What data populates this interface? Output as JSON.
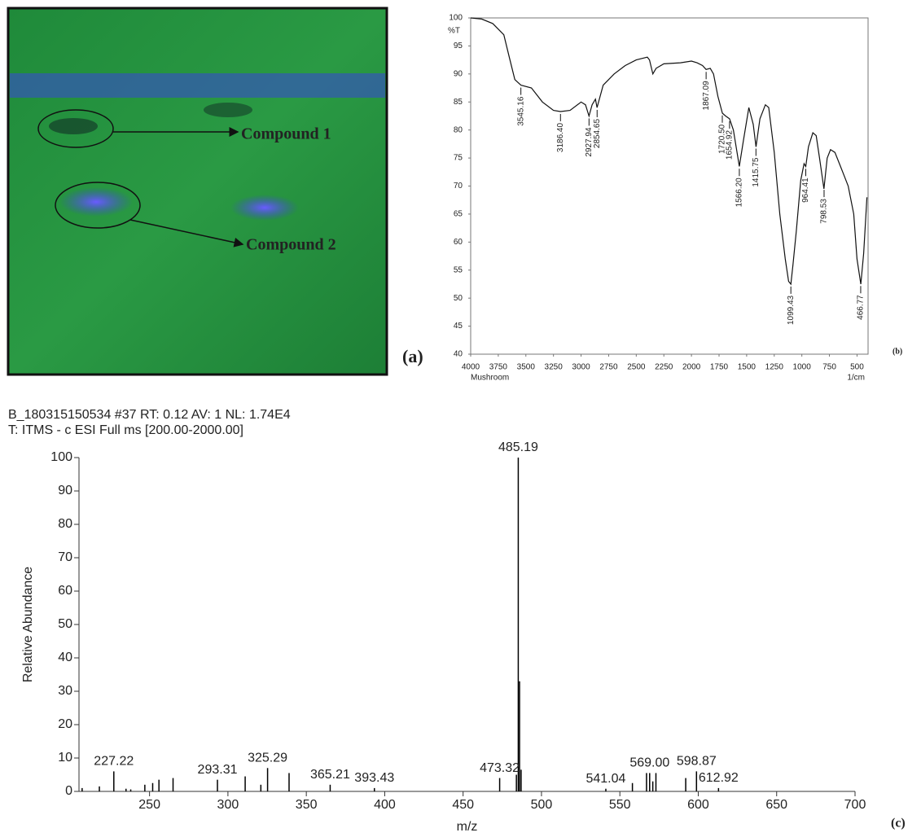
{
  "photo": {
    "labels": [
      "Compound 1",
      "Compound 2"
    ],
    "panel_label": "(a)"
  },
  "chart_data": [
    {
      "type": "line",
      "panel_label": "(b)",
      "y_label": "%T",
      "x_label": "1/cm",
      "subtitle": "Mushroom",
      "color": "#111111",
      "xlim": [
        4000,
        400
      ],
      "ylim": [
        40,
        100
      ],
      "xticks": [
        4000,
        3750,
        3500,
        3250,
        3000,
        2750,
        2500,
        2250,
        2000,
        1750,
        1500,
        1250,
        1000,
        750,
        500
      ],
      "yticks": [
        40,
        45,
        50,
        55,
        60,
        65,
        70,
        75,
        80,
        85,
        90,
        95,
        100
      ],
      "x": [
        4000,
        3900,
        3800,
        3700,
        3650,
        3600,
        3545,
        3450,
        3350,
        3250,
        3186,
        3100,
        3000,
        2960,
        2928,
        2900,
        2870,
        2855,
        2800,
        2700,
        2600,
        2500,
        2400,
        2380,
        2350,
        2320,
        2250,
        2100,
        2000,
        1950,
        1900,
        1867,
        1830,
        1800,
        1760,
        1720,
        1690,
        1655,
        1620,
        1566,
        1530,
        1480,
        1440,
        1415,
        1380,
        1330,
        1300,
        1250,
        1200,
        1150,
        1120,
        1099,
        1080,
        1050,
        1010,
        980,
        964,
        940,
        900,
        870,
        840,
        800,
        770,
        740,
        700,
        660,
        620,
        580,
        530,
        500,
        466,
        440,
        410
      ],
      "values": [
        100,
        99.8,
        99,
        97,
        93,
        89,
        88,
        87.5,
        85,
        83.5,
        83.3,
        83.5,
        85,
        84.5,
        82.5,
        84.5,
        85.5,
        84,
        88,
        90,
        91.5,
        92.5,
        93,
        92.5,
        90,
        91,
        91.8,
        92,
        92.3,
        92,
        91.5,
        90.8,
        91,
        90,
        86,
        83,
        82.5,
        82,
        80,
        73.5,
        78,
        84,
        81,
        77,
        82,
        84.5,
        84,
        76,
        65,
        57,
        53,
        52.5,
        56,
        62,
        71,
        74,
        73.5,
        77,
        79.5,
        79,
        75,
        69.5,
        75,
        76.5,
        76,
        74,
        72,
        70,
        65,
        57,
        52.5,
        58,
        68
      ],
      "peak_labels": [
        3545.16,
        {
          "value": 3186.4,
          "label": "3186.40"
        },
        2927.94,
        2854.65,
        1867.09,
        {
          "value": 1720.5,
          "label": "1720.50"
        },
        1654.92,
        {
          "value": 1566.2,
          "label": "1566.20"
        },
        1415.75,
        1099.43,
        964.41,
        798.53,
        466.77
      ]
    },
    {
      "type": "stem",
      "panel_label": "(c)",
      "title": "B_180315150534 #37  RT: 0.12  AV: 1  NL: 1.74E4",
      "subtitle": "T: ITMS - c ESI Full ms [200.00-2000.00]",
      "y_label": "Relative Abundance",
      "x_label": "m/z",
      "color": "#000000",
      "xlim": [
        205,
        700
      ],
      "ylim": [
        0,
        100
      ],
      "xticks": [
        250,
        300,
        350,
        400,
        450,
        500,
        550,
        600,
        650,
        700
      ],
      "yticks": [
        0,
        10,
        20,
        30,
        40,
        50,
        60,
        70,
        80,
        90,
        100
      ],
      "x": [
        207,
        218,
        227.22,
        235,
        238,
        247,
        252,
        256,
        265,
        293.31,
        311,
        321,
        325.29,
        339,
        365.21,
        393.43,
        473.32,
        484,
        485.19,
        486,
        487,
        541.04,
        558,
        567,
        569,
        571,
        573,
        592,
        598.87,
        612.92
      ],
      "values": [
        1,
        1.5,
        6,
        0.8,
        0.6,
        2,
        2.5,
        3.5,
        4,
        3.5,
        4.5,
        2,
        7,
        5.5,
        2,
        1,
        4,
        5,
        100,
        33,
        6.5,
        0.8,
        2.5,
        5.5,
        5.5,
        3,
        5.5,
        4,
        6,
        1
      ],
      "peak_labels": [
        227.22,
        293.31,
        325.29,
        365.21,
        393.43,
        473.32,
        485.19,
        541.04,
        {
          "value": 569,
          "label": "569.00"
        },
        598.87,
        612.92
      ]
    }
  ]
}
